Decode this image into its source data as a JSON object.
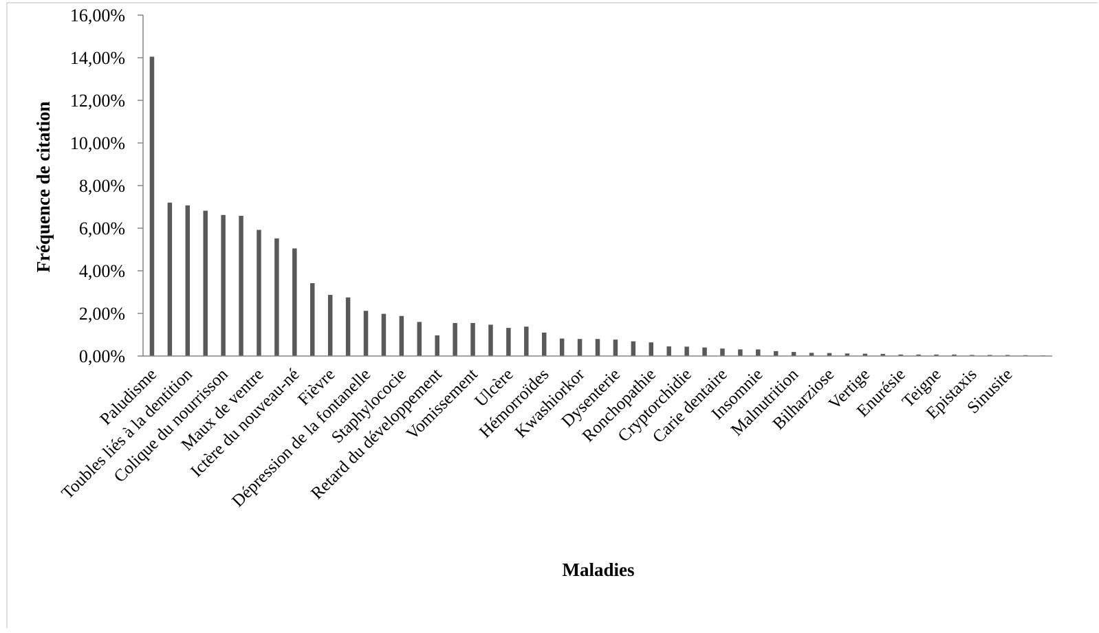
{
  "chart_data": {
    "type": "bar",
    "title": "",
    "xlabel": "Maladies",
    "ylabel": "Fréquence de citation",
    "ylim": [
      0,
      16
    ],
    "yticks": [
      0,
      2,
      4,
      6,
      8,
      10,
      12,
      14,
      16
    ],
    "ytick_labels": [
      "0,00%",
      "2,00%",
      "4,00%",
      "6,00%",
      "8,00%",
      "10,00%",
      "12,00%",
      "14,00%",
      "16,00%"
    ],
    "grid": false,
    "legend": "none",
    "bar_color": "#595959",
    "axis_color": "#868686",
    "categories": [
      "Paludisme",
      "",
      "Toubles liés à la dentition",
      "",
      "Colique du nourrisson",
      "",
      "Maux de ventre",
      "",
      "Ictère du nouveau-né",
      "",
      "Fièvre",
      "",
      "Dépression de la fontanelle",
      "",
      "Staphylococie",
      "",
      "Retard du développement",
      "",
      "Vomissement",
      "",
      "Ulcère",
      "",
      "Hémorroïdes",
      "",
      "Kwashiorkor",
      "",
      "Dysenterie",
      "",
      "Ronchopathie",
      "",
      "Cryptorchidie",
      "",
      "Carie dentaire",
      "",
      "Insomnie",
      "",
      "Malnutrition",
      "",
      "Bilharziose",
      "",
      "Vertige",
      "",
      "Enurésie",
      "",
      "Teigne",
      "",
      "Epistaxis",
      "",
      "Sinusite",
      "",
      ""
    ],
    "values": [
      14.05,
      7.2,
      7.07,
      6.82,
      6.62,
      6.58,
      5.92,
      5.52,
      5.05,
      3.42,
      2.87,
      2.75,
      2.12,
      1.98,
      1.88,
      1.6,
      0.97,
      1.55,
      1.55,
      1.47,
      1.32,
      1.38,
      1.1,
      0.82,
      0.8,
      0.8,
      0.77,
      0.69,
      0.64,
      0.45,
      0.44,
      0.4,
      0.35,
      0.31,
      0.31,
      0.23,
      0.19,
      0.15,
      0.14,
      0.12,
      0.11,
      0.1,
      0.07,
      0.07,
      0.07,
      0.07,
      0.05,
      0.05,
      0.05,
      0.04,
      0.03
    ]
  }
}
